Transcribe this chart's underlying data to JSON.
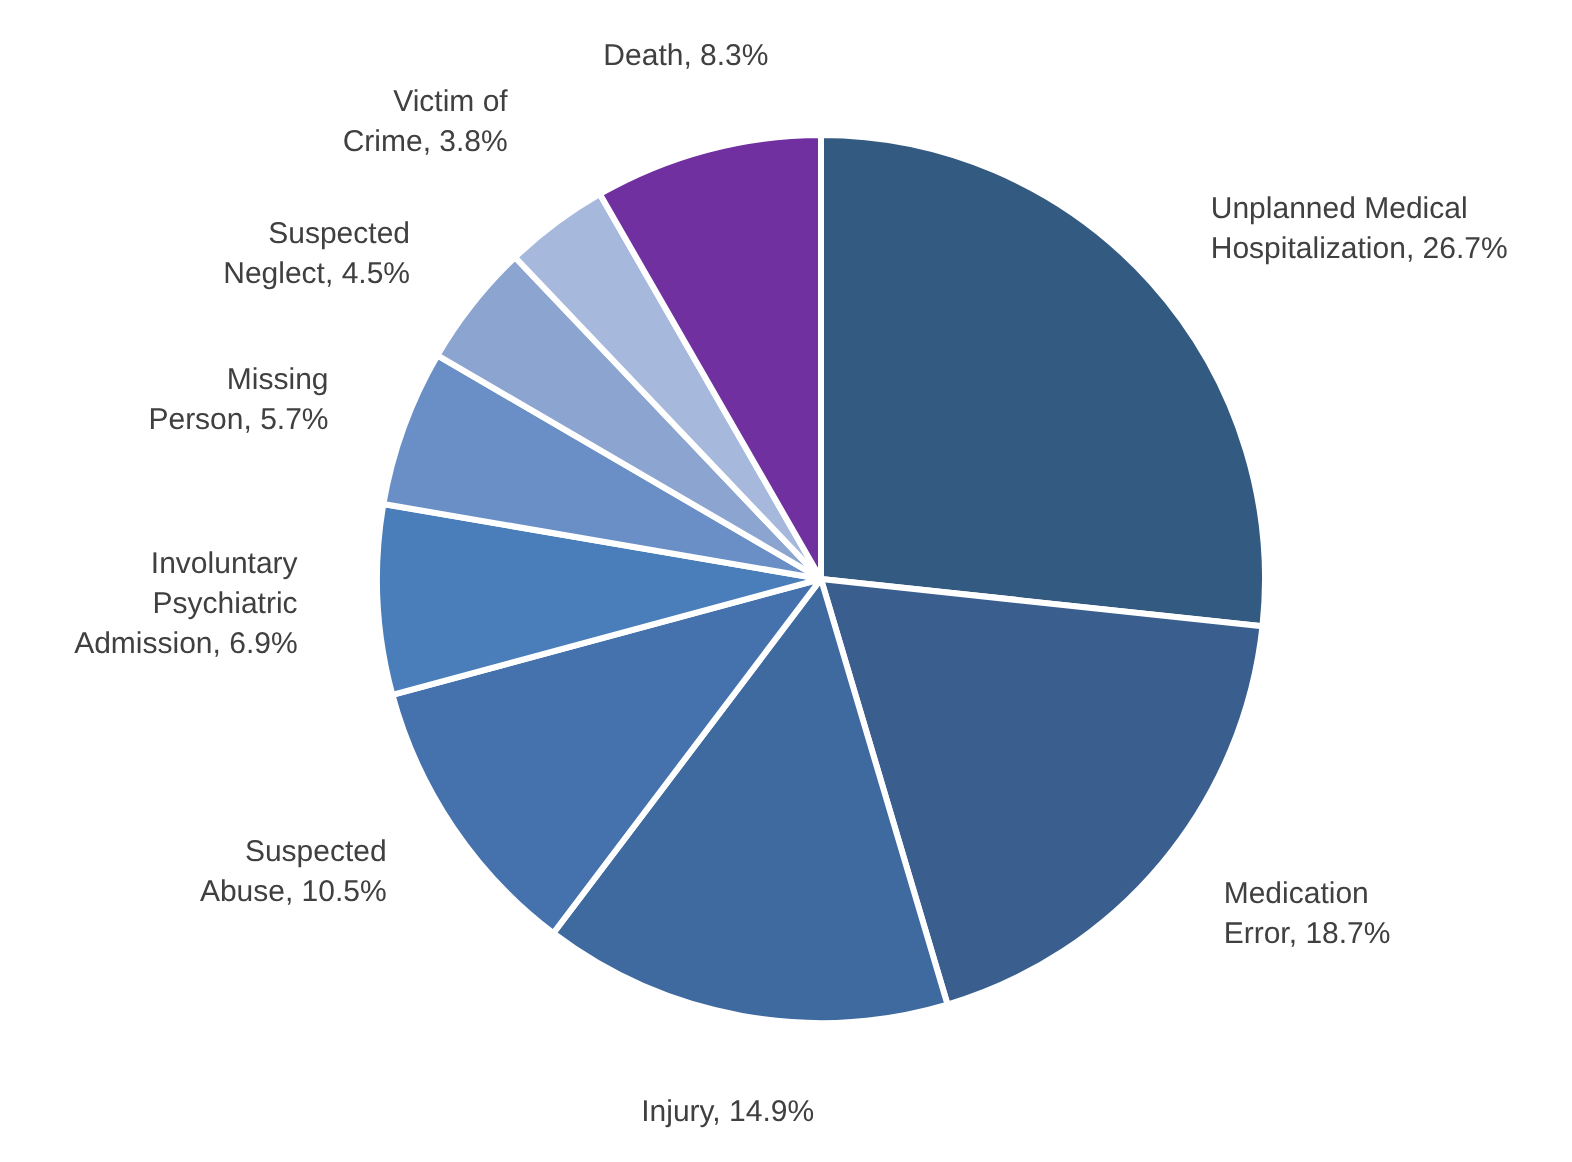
{
  "chart_data": {
    "type": "pie",
    "categories": [
      "Unplanned Medical Hospitalization",
      "Medication Error",
      "Injury",
      "Suspected Abuse",
      "Involuntary Psychiatric Admission",
      "Missing Person",
      "Suspected Neglect",
      "Victim of Crime",
      "Death"
    ],
    "values": [
      26.7,
      18.7,
      14.9,
      10.5,
      6.9,
      5.7,
      4.5,
      3.8,
      8.3
    ],
    "value_labels": [
      "26.7%",
      "18.7%",
      "14.9%",
      "10.5%",
      "6.9%",
      "5.7%",
      "4.5%",
      "3.8%",
      "8.3%"
    ],
    "colors": [
      "#335a80",
      "#3a5f8f",
      "#3f6aa0",
      "#4572ad",
      "#4a7eba",
      "#6a8fc6",
      "#8ca4d0",
      "#a6b8dc",
      "#7030a0"
    ]
  }
}
